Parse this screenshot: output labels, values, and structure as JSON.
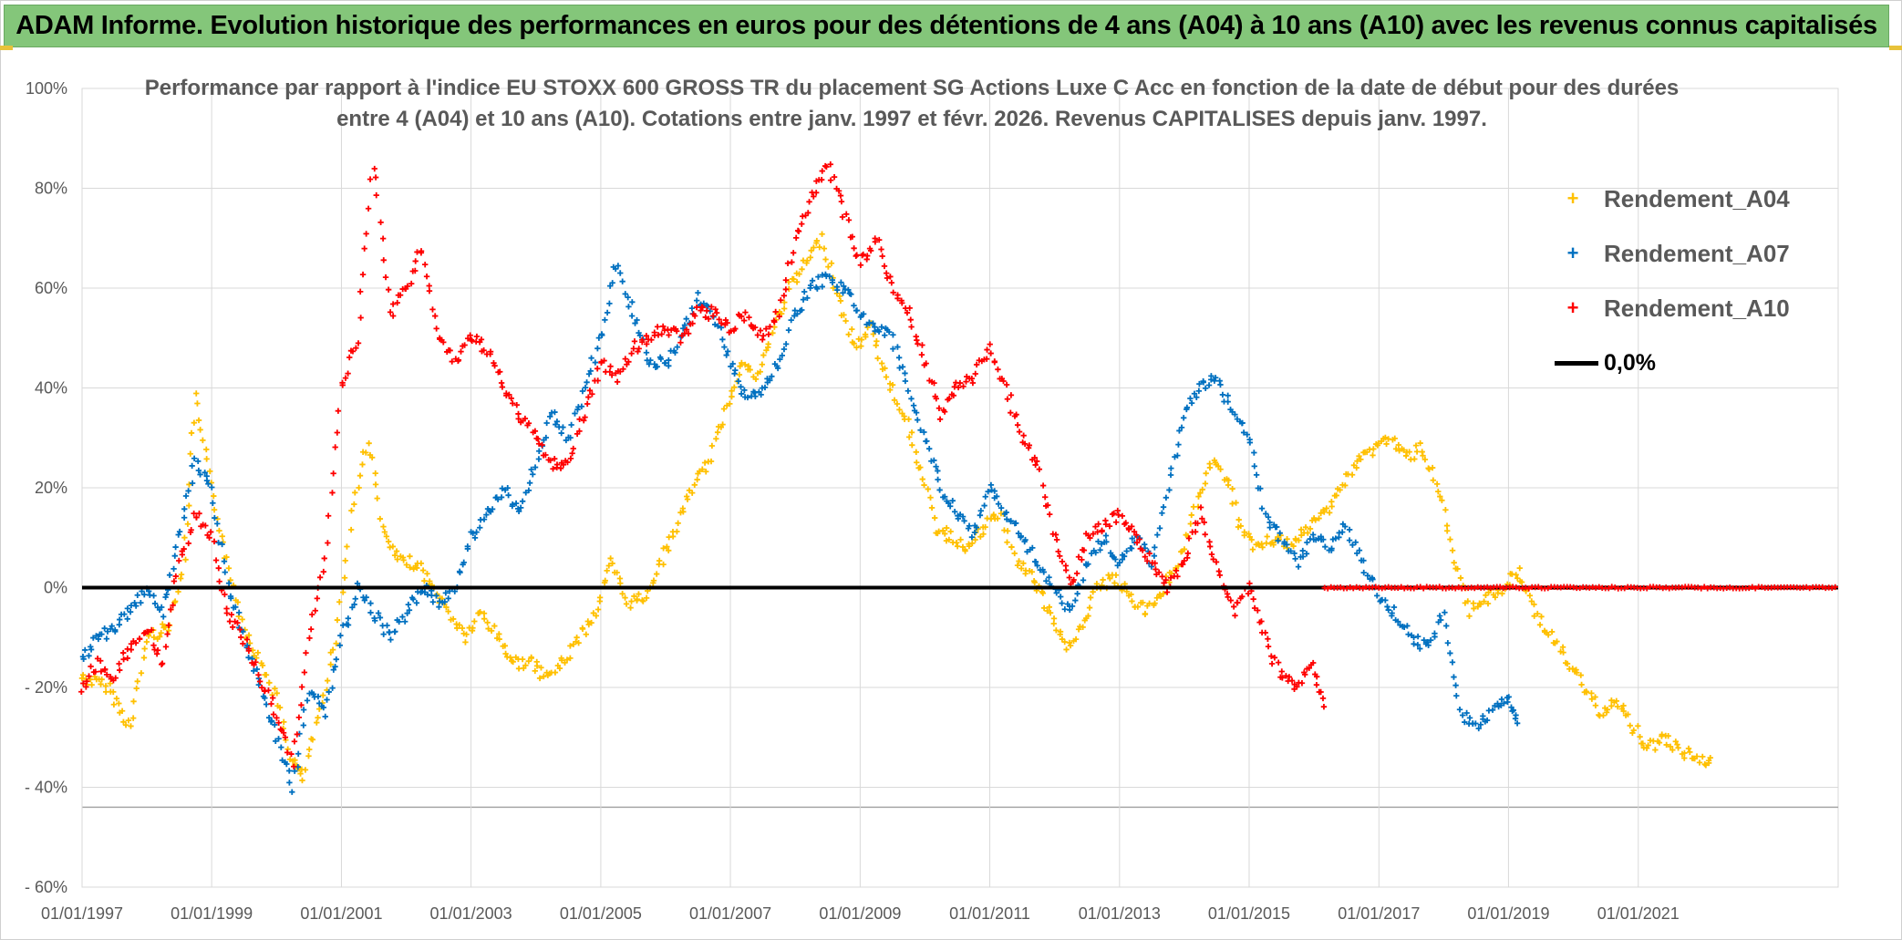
{
  "banner": {
    "title": "ADAM Informe. Evolution historique des performances en euros pour des détentions de 4 ans (A04) à 10 ans (A10) avec les revenus connus capitalisés"
  },
  "colors": {
    "banner_bg": "#84c67a",
    "a04": "#ffc000",
    "a07": "#0070c0",
    "a10": "#ff0000",
    "zero_line": "#000000"
  },
  "chart_data": {
    "type": "scatter",
    "title_line1": "Performance  par rapport à l'indice EU STOXX 600 GROSS TR  du placement SG Actions Luxe C Acc en fonction de la date de début pour des durées",
    "title_line2": "entre 4 (A04) et 10 ans (A10). Cotations entre janv. 1997 et févr. 2026. Revenus CAPITALISES depuis janv. 1997.",
    "x_ticks": [
      "01/01/1997",
      "01/01/1999",
      "01/01/2001",
      "01/01/2003",
      "01/01/2005",
      "01/01/2007",
      "01/01/2009",
      "01/01/2011",
      "01/01/2013",
      "01/01/2015",
      "01/01/2017",
      "01/01/2019",
      "01/01/2021"
    ],
    "y_ticks": [
      "100%",
      "80%",
      "60%",
      "40%",
      "20%",
      "0%",
      "- 20%",
      "- 40%",
      "- 60%"
    ],
    "xlim": [
      "1997-01-01",
      "2024-02-01"
    ],
    "ylim": [
      -60,
      100
    ],
    "grid": true,
    "legend_position": "top-right",
    "legend": [
      "Rendement_A04",
      "Rendement_A07",
      "Rendement_A10",
      "0,0%"
    ],
    "series": [
      {
        "name": "Rendement_A04",
        "color": "#ffc000",
        "points": [
          [
            "1997-01-01",
            -18
          ],
          [
            "1997-06-01",
            -20
          ],
          [
            "1997-10-01",
            -28
          ],
          [
            "1998-01-01",
            -10
          ],
          [
            "1998-05-01",
            -8
          ],
          [
            "1998-08-01",
            5
          ],
          [
            "1998-10-01",
            38
          ],
          [
            "1999-01-01",
            20
          ],
          [
            "1999-04-01",
            5
          ],
          [
            "1999-07-01",
            -8
          ],
          [
            "1999-10-01",
            -15
          ],
          [
            "2000-01-01",
            -22
          ],
          [
            "2000-04-01",
            -35
          ],
          [
            "2000-06-01",
            -38
          ],
          [
            "2000-09-01",
            -25
          ],
          [
            "2000-12-01",
            -10
          ],
          [
            "2001-03-01",
            15
          ],
          [
            "2001-06-01",
            30
          ],
          [
            "2001-09-01",
            10
          ],
          [
            "2001-12-01",
            5
          ],
          [
            "2002-03-01",
            5
          ],
          [
            "2002-06-01",
            0
          ],
          [
            "2002-09-01",
            -5
          ],
          [
            "2002-12-01",
            -10
          ],
          [
            "2003-03-01",
            -5
          ],
          [
            "2003-06-01",
            -10
          ],
          [
            "2003-09-01",
            -15
          ],
          [
            "2003-12-01",
            -15
          ],
          [
            "2004-03-01",
            -18
          ],
          [
            "2004-06-01",
            -15
          ],
          [
            "2004-09-01",
            -10
          ],
          [
            "2004-12-01",
            -5
          ],
          [
            "2005-03-01",
            5
          ],
          [
            "2005-06-01",
            -3
          ],
          [
            "2005-09-01",
            -2
          ],
          [
            "2005-12-01",
            5
          ],
          [
            "2006-03-01",
            12
          ],
          [
            "2006-06-01",
            20
          ],
          [
            "2006-09-01",
            25
          ],
          [
            "2006-12-01",
            35
          ],
          [
            "2007-03-01",
            45
          ],
          [
            "2007-06-01",
            42
          ],
          [
            "2007-09-01",
            52
          ],
          [
            "2007-12-01",
            60
          ],
          [
            "2008-03-01",
            65
          ],
          [
            "2008-06-01",
            70
          ],
          [
            "2008-09-01",
            58
          ],
          [
            "2008-12-01",
            48
          ],
          [
            "2009-03-01",
            52
          ],
          [
            "2009-06-01",
            42
          ],
          [
            "2009-09-01",
            35
          ],
          [
            "2009-12-01",
            25
          ],
          [
            "2010-03-01",
            12
          ],
          [
            "2010-06-01",
            10
          ],
          [
            "2010-09-01",
            8
          ],
          [
            "2010-12-01",
            12
          ],
          [
            "2011-03-01",
            15
          ],
          [
            "2011-06-01",
            5
          ],
          [
            "2011-09-01",
            2
          ],
          [
            "2011-12-01",
            -5
          ],
          [
            "2012-03-01",
            -12
          ],
          [
            "2012-06-01",
            -8
          ],
          [
            "2012-09-01",
            0
          ],
          [
            "2012-12-01",
            2
          ],
          [
            "2013-03-01",
            -2
          ],
          [
            "2013-06-01",
            -5
          ],
          [
            "2013-09-01",
            0
          ],
          [
            "2013-12-01",
            5
          ],
          [
            "2014-03-01",
            15
          ],
          [
            "2014-06-01",
            25
          ],
          [
            "2014-09-01",
            22
          ],
          [
            "2014-12-01",
            10
          ],
          [
            "2015-03-01",
            8
          ],
          [
            "2015-06-01",
            10
          ],
          [
            "2015-09-01",
            8
          ],
          [
            "2015-12-01",
            12
          ],
          [
            "2016-03-01",
            15
          ],
          [
            "2016-06-01",
            20
          ],
          [
            "2016-09-01",
            25
          ],
          [
            "2016-12-01",
            28
          ],
          [
            "2017-03-01",
            30
          ],
          [
            "2017-06-01",
            26
          ],
          [
            "2017-09-01",
            28
          ],
          [
            "2017-12-01",
            20
          ],
          [
            "2018-03-01",
            5
          ],
          [
            "2018-06-01",
            -5
          ],
          [
            "2018-09-01",
            -2
          ],
          [
            "2018-12-01",
            0
          ],
          [
            "2019-03-01",
            3
          ],
          [
            "2019-06-01",
            -5
          ],
          [
            "2019-09-01",
            -10
          ],
          [
            "2019-12-01",
            -15
          ],
          [
            "2020-03-01",
            -20
          ],
          [
            "2020-06-01",
            -25
          ],
          [
            "2020-09-01",
            -22
          ],
          [
            "2020-12-01",
            -28
          ],
          [
            "2021-03-01",
            -32
          ],
          [
            "2021-06-01",
            -30
          ],
          [
            "2021-09-01",
            -33
          ],
          [
            "2021-12-01",
            -34
          ],
          [
            "2022-03-01",
            -35
          ]
        ]
      },
      {
        "name": "Rendement_A07",
        "color": "#0070c0",
        "points": [
          [
            "1997-01-01",
            -15
          ],
          [
            "1997-04-01",
            -10
          ],
          [
            "1997-07-01",
            -8
          ],
          [
            "1997-10-01",
            -5
          ],
          [
            "1998-01-01",
            0
          ],
          [
            "1998-04-01",
            -5
          ],
          [
            "1998-07-01",
            10
          ],
          [
            "1998-10-01",
            25
          ],
          [
            "1999-01-01",
            20
          ],
          [
            "1999-04-01",
            0
          ],
          [
            "1999-07-01",
            -10
          ],
          [
            "1999-10-01",
            -20
          ],
          [
            "2000-01-01",
            -30
          ],
          [
            "2000-04-01",
            -40
          ],
          [
            "2000-07-01",
            -20
          ],
          [
            "2000-10-01",
            -25
          ],
          [
            "2001-01-01",
            -10
          ],
          [
            "2001-04-01",
            0
          ],
          [
            "2001-07-01",
            -5
          ],
          [
            "2001-10-01",
            -10
          ],
          [
            "2002-01-01",
            -5
          ],
          [
            "2002-04-01",
            0
          ],
          [
            "2002-07-01",
            -3
          ],
          [
            "2002-10-01",
            0
          ],
          [
            "2003-01-01",
            10
          ],
          [
            "2003-04-01",
            15
          ],
          [
            "2003-07-01",
            20
          ],
          [
            "2003-10-01",
            15
          ],
          [
            "2004-01-01",
            25
          ],
          [
            "2004-04-01",
            35
          ],
          [
            "2004-07-01",
            30
          ],
          [
            "2004-10-01",
            40
          ],
          [
            "2005-01-01",
            50
          ],
          [
            "2005-04-01",
            65
          ],
          [
            "2005-07-01",
            55
          ],
          [
            "2005-10-01",
            45
          ],
          [
            "2006-01-01",
            45
          ],
          [
            "2006-04-01",
            50
          ],
          [
            "2006-07-01",
            58
          ],
          [
            "2006-10-01",
            55
          ],
          [
            "2007-01-01",
            45
          ],
          [
            "2007-04-01",
            38
          ],
          [
            "2007-07-01",
            40
          ],
          [
            "2007-10-01",
            45
          ],
          [
            "2008-01-01",
            55
          ],
          [
            "2008-04-01",
            60
          ],
          [
            "2008-07-01",
            62
          ],
          [
            "2008-10-01",
            60
          ],
          [
            "2009-01-01",
            55
          ],
          [
            "2009-04-01",
            52
          ],
          [
            "2009-07-01",
            50
          ],
          [
            "2009-10-01",
            40
          ],
          [
            "2010-01-01",
            30
          ],
          [
            "2010-04-01",
            20
          ],
          [
            "2010-07-01",
            15
          ],
          [
            "2010-10-01",
            10
          ],
          [
            "2011-01-01",
            20
          ],
          [
            "2011-04-01",
            15
          ],
          [
            "2011-07-01",
            10
          ],
          [
            "2011-10-01",
            5
          ],
          [
            "2012-01-01",
            0
          ],
          [
            "2012-04-01",
            -5
          ],
          [
            "2012-07-01",
            5
          ],
          [
            "2012-10-01",
            10
          ],
          [
            "2013-01-01",
            5
          ],
          [
            "2013-04-01",
            10
          ],
          [
            "2013-07-01",
            5
          ],
          [
            "2013-10-01",
            20
          ],
          [
            "2014-01-01",
            35
          ],
          [
            "2014-04-01",
            40
          ],
          [
            "2014-07-01",
            42
          ],
          [
            "2014-10-01",
            35
          ],
          [
            "2015-01-01",
            30
          ],
          [
            "2015-04-01",
            15
          ],
          [
            "2015-07-01",
            10
          ],
          [
            "2015-10-01",
            5
          ],
          [
            "2016-01-01",
            10
          ],
          [
            "2016-04-01",
            8
          ],
          [
            "2016-07-01",
            12
          ],
          [
            "2016-10-01",
            5
          ],
          [
            "2017-01-01",
            -2
          ],
          [
            "2017-04-01",
            -5
          ],
          [
            "2017-07-01",
            -10
          ],
          [
            "2017-10-01",
            -12
          ],
          [
            "2018-01-01",
            -5
          ],
          [
            "2018-04-01",
            -25
          ],
          [
            "2018-07-01",
            -28
          ],
          [
            "2018-10-01",
            -25
          ],
          [
            "2019-01-01",
            -22
          ],
          [
            "2019-03-01",
            -28
          ]
        ]
      },
      {
        "name": "Rendement_A10",
        "color": "#ff0000",
        "points": [
          [
            "1997-01-01",
            -20
          ],
          [
            "1997-04-01",
            -15
          ],
          [
            "1997-07-01",
            -18
          ],
          [
            "1997-10-01",
            -12
          ],
          [
            "1998-01-01",
            -8
          ],
          [
            "1998-04-01",
            -15
          ],
          [
            "1998-07-01",
            5
          ],
          [
            "1998-10-01",
            15
          ],
          [
            "1999-01-01",
            10
          ],
          [
            "1999-04-01",
            -5
          ],
          [
            "1999-07-01",
            -10
          ],
          [
            "1999-10-01",
            -18
          ],
          [
            "2000-01-01",
            -25
          ],
          [
            "2000-04-01",
            -35
          ],
          [
            "2000-07-01",
            -10
          ],
          [
            "2000-10-01",
            5
          ],
          [
            "2001-01-01",
            40
          ],
          [
            "2001-04-01",
            50
          ],
          [
            "2001-07-01",
            85
          ],
          [
            "2001-10-01",
            55
          ],
          [
            "2002-01-01",
            60
          ],
          [
            "2002-04-01",
            68
          ],
          [
            "2002-07-01",
            50
          ],
          [
            "2002-10-01",
            45
          ],
          [
            "2003-01-01",
            50
          ],
          [
            "2003-04-01",
            48
          ],
          [
            "2003-07-01",
            40
          ],
          [
            "2003-10-01",
            35
          ],
          [
            "2004-01-01",
            30
          ],
          [
            "2004-04-01",
            25
          ],
          [
            "2004-07-01",
            25
          ],
          [
            "2004-10-01",
            35
          ],
          [
            "2005-01-01",
            45
          ],
          [
            "2005-04-01",
            42
          ],
          [
            "2005-07-01",
            48
          ],
          [
            "2005-10-01",
            50
          ],
          [
            "2006-01-01",
            52
          ],
          [
            "2006-04-01",
            50
          ],
          [
            "2006-07-01",
            55
          ],
          [
            "2006-10-01",
            55
          ],
          [
            "2007-01-01",
            52
          ],
          [
            "2007-04-01",
            55
          ],
          [
            "2007-07-01",
            50
          ],
          [
            "2007-10-01",
            55
          ],
          [
            "2008-01-01",
            70
          ],
          [
            "2008-04-01",
            78
          ],
          [
            "2008-07-01",
            85
          ],
          [
            "2008-10-01",
            75
          ],
          [
            "2009-01-01",
            65
          ],
          [
            "2009-04-01",
            70
          ],
          [
            "2009-07-01",
            60
          ],
          [
            "2009-10-01",
            55
          ],
          [
            "2010-01-01",
            45
          ],
          [
            "2010-04-01",
            35
          ],
          [
            "2010-07-01",
            40
          ],
          [
            "2010-10-01",
            42
          ],
          [
            "2011-01-01",
            48
          ],
          [
            "2011-04-01",
            40
          ],
          [
            "2011-07-01",
            30
          ],
          [
            "2011-10-01",
            25
          ],
          [
            "2012-01-01",
            10
          ],
          [
            "2012-04-01",
            0
          ],
          [
            "2012-07-01",
            10
          ],
          [
            "2012-10-01",
            12
          ],
          [
            "2013-01-01",
            15
          ],
          [
            "2013-04-01",
            10
          ],
          [
            "2013-07-01",
            5
          ],
          [
            "2013-10-01",
            0
          ],
          [
            "2014-01-01",
            5
          ],
          [
            "2014-04-01",
            15
          ],
          [
            "2014-07-01",
            5
          ],
          [
            "2014-10-01",
            -5
          ],
          [
            "2015-01-01",
            0
          ],
          [
            "2015-04-01",
            -10
          ],
          [
            "2015-07-01",
            -18
          ],
          [
            "2015-10-01",
            -20
          ],
          [
            "2016-01-01",
            -15
          ],
          [
            "2016-03-01",
            -25
          ]
        ]
      }
    ],
    "a10_zero_from": "2016-03-01",
    "zero_line_value": 0
  }
}
